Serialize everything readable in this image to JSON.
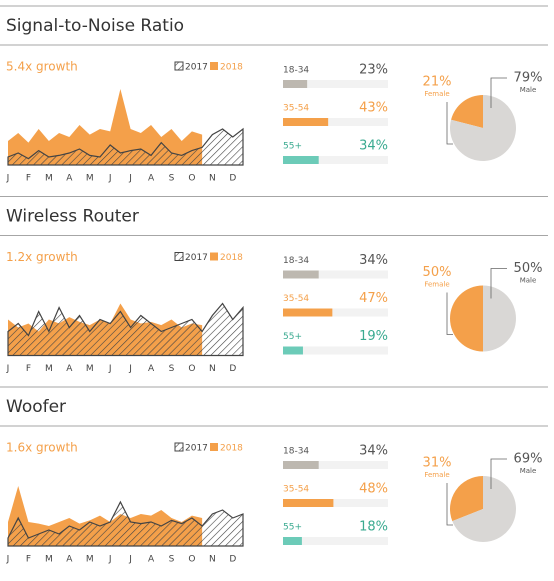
{
  "panels": [
    {
      "title": "Signal-to-Noise Ratio",
      "growth": "5.4x growth",
      "chart": {
        "type": "area",
        "categories": [
          "J",
          null,
          "F",
          null,
          "M",
          null,
          "A",
          null,
          "M",
          null,
          "J",
          null,
          "J",
          null,
          "A",
          null,
          "S",
          null,
          "O",
          null,
          "N",
          null,
          "D",
          null
        ],
        "ylim": [
          0,
          100
        ],
        "series": [
          {
            "name": "2018",
            "color": "#f4a04a",
            "values": [
              30,
              40,
              28,
              45,
              30,
              40,
              35,
              50,
              38,
              45,
              42,
              95,
              45,
              40,
              50,
              35,
              45,
              30,
              42,
              38,
              null,
              null,
              null,
              null
            ]
          },
          {
            "name": "2017",
            "color": "#444444",
            "values": [
              10,
              15,
              8,
              18,
              10,
              12,
              15,
              20,
              12,
              10,
              25,
              15,
              18,
              20,
              12,
              28,
              15,
              12,
              18,
              22,
              38,
              45,
              35,
              45
            ]
          }
        ]
      },
      "age": {
        "type": "bar",
        "categories": [
          "18-34",
          "35-54",
          "55+"
        ],
        "values": [
          23,
          43,
          34
        ],
        "value_labels": [
          "23%",
          "43%",
          "34%"
        ],
        "colors": [
          "#bdb8b0",
          "#f4a04a",
          "#6ccbb8"
        ],
        "text_colors": [
          "#555555",
          "#f4a04a",
          "#3aaa90"
        ]
      },
      "gender": {
        "type": "pie",
        "categories": [
          "Female",
          "Male"
        ],
        "values": [
          21,
          79
        ],
        "value_labels": [
          "21%",
          "79%"
        ],
        "colors": [
          "#f4a04a",
          "#d9d7d5"
        ],
        "text_colors": [
          "#f4a04a",
          "#555555"
        ]
      }
    },
    {
      "title": "Wireless Router",
      "growth": "1.2x growth",
      "chart": {
        "type": "area",
        "categories": [
          "J",
          null,
          "F",
          null,
          "M",
          null,
          "A",
          null,
          "M",
          null,
          "J",
          null,
          "J",
          null,
          "A",
          null,
          "S",
          null,
          "O",
          null,
          "N",
          null,
          "D",
          null
        ],
        "ylim": [
          0,
          100
        ],
        "series": [
          {
            "name": "2018",
            "color": "#f4a04a",
            "values": [
              45,
              35,
              40,
              30,
              45,
              40,
              48,
              42,
              38,
              45,
              40,
              65,
              45,
              40,
              42,
              38,
              45,
              35,
              40,
              38,
              null,
              null,
              null,
              null
            ]
          },
          {
            "name": "2017",
            "color": "#444444",
            "values": [
              30,
              40,
              25,
              55,
              30,
              60,
              35,
              50,
              30,
              45,
              40,
              55,
              35,
              50,
              40,
              30,
              35,
              40,
              45,
              30,
              50,
              65,
              45,
              60
            ]
          }
        ]
      },
      "age": {
        "type": "bar",
        "categories": [
          "18-34",
          "35-54",
          "55+"
        ],
        "values": [
          34,
          47,
          19
        ],
        "value_labels": [
          "34%",
          "47%",
          "19%"
        ],
        "colors": [
          "#bdb8b0",
          "#f4a04a",
          "#6ccbb8"
        ],
        "text_colors": [
          "#555555",
          "#f4a04a",
          "#3aaa90"
        ]
      },
      "gender": {
        "type": "pie",
        "categories": [
          "Female",
          "Male"
        ],
        "values": [
          50,
          50
        ],
        "value_labels": [
          "50%",
          "50%"
        ],
        "colors": [
          "#f4a04a",
          "#d9d7d5"
        ],
        "text_colors": [
          "#f4a04a",
          "#555555"
        ]
      }
    },
    {
      "title": "Woofer",
      "growth": "1.6x growth",
      "chart": {
        "type": "area",
        "categories": [
          "J",
          null,
          "F",
          null,
          "M",
          null,
          "A",
          null,
          "M",
          null,
          "J",
          null,
          "J",
          null,
          "A",
          null,
          "S",
          null,
          "O",
          null,
          "N",
          null,
          "D",
          null
        ],
        "ylim": [
          0,
          100
        ],
        "series": [
          {
            "name": "2018",
            "color": "#f4a04a",
            "values": [
              30,
              75,
              30,
              28,
              25,
              30,
              35,
              28,
              32,
              38,
              30,
              40,
              35,
              40,
              38,
              45,
              35,
              30,
              38,
              35,
              null,
              null,
              null,
              null
            ]
          },
          {
            "name": "2017",
            "color": "#444444",
            "values": [
              10,
              35,
              10,
              15,
              20,
              15,
              25,
              20,
              30,
              25,
              30,
              55,
              30,
              28,
              30,
              25,
              32,
              28,
              35,
              25,
              40,
              45,
              35,
              40
            ]
          }
        ]
      },
      "age": {
        "type": "bar",
        "categories": [
          "18-34",
          "35-54",
          "55+"
        ],
        "values": [
          34,
          48,
          18
        ],
        "value_labels": [
          "34%",
          "48%",
          "18%"
        ],
        "colors": [
          "#bdb8b0",
          "#f4a04a",
          "#6ccbb8"
        ],
        "text_colors": [
          "#555555",
          "#f4a04a",
          "#3aaa90"
        ]
      },
      "gender": {
        "type": "pie",
        "categories": [
          "Female",
          "Male"
        ],
        "values": [
          31,
          69
        ],
        "value_labels": [
          "31%",
          "69%"
        ],
        "colors": [
          "#f4a04a",
          "#d9d7d5"
        ],
        "text_colors": [
          "#f4a04a",
          "#555555"
        ]
      }
    }
  ]
}
